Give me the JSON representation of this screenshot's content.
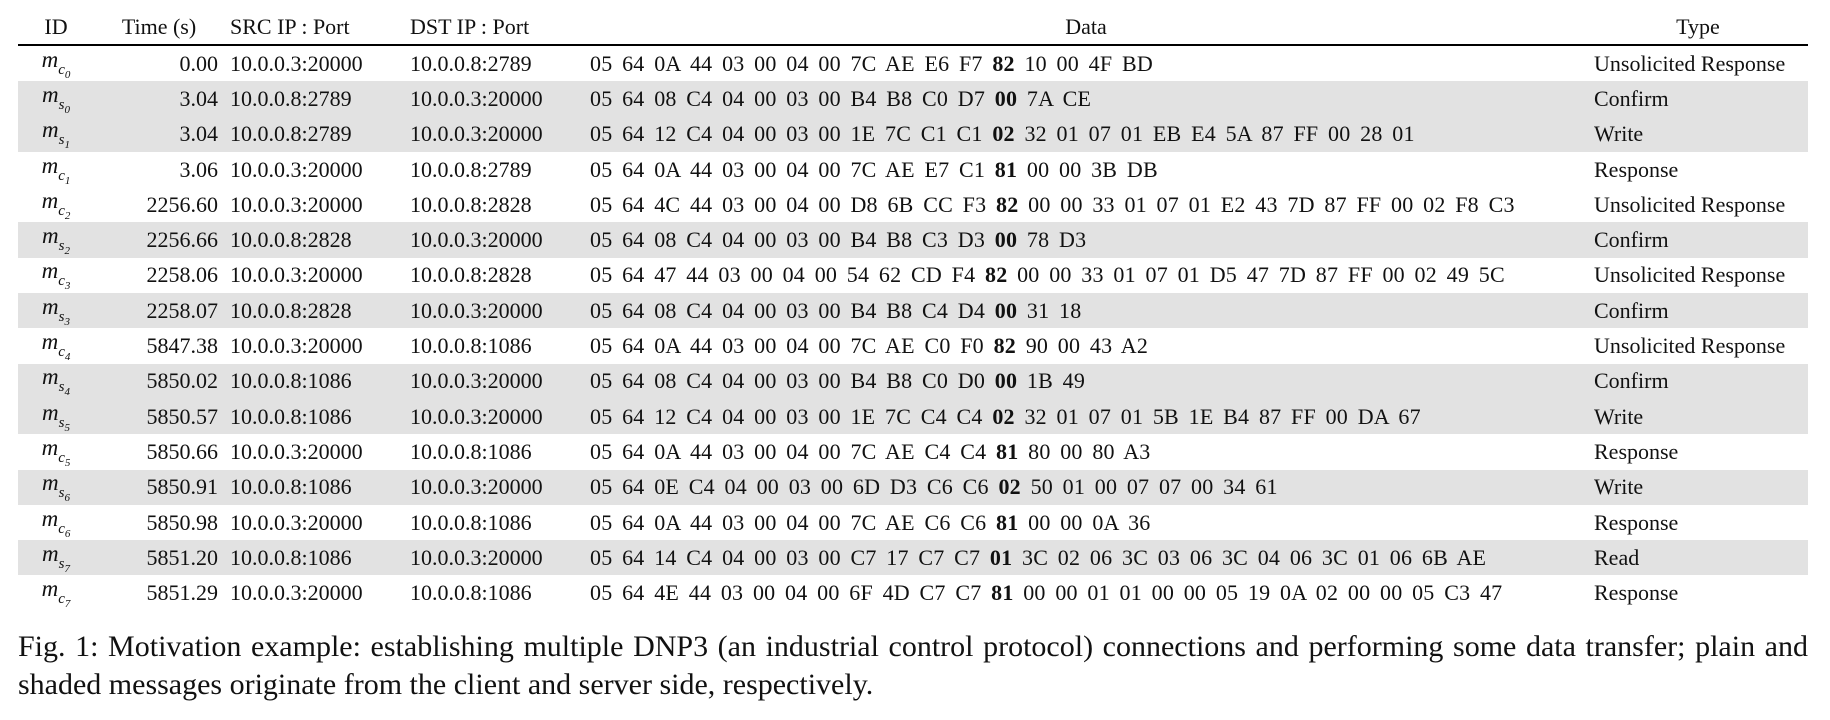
{
  "table": {
    "headers": {
      "id": "ID",
      "time": "Time (s)",
      "src": "SRC IP : Port",
      "dst": "DST IP : Port",
      "data": "Data",
      "type": "Type"
    },
    "rows": [
      {
        "side": "c",
        "idx": "0",
        "time": "0.00",
        "src": "10.0.0.3:20000",
        "dst": "10.0.0.8:2789",
        "pre": "05 64 0A 44 03 00 04 00 7C AE E6 F7",
        "key": "82",
        "post": "10 00 4F BD",
        "type": "Unsolicited Response",
        "shaded": false
      },
      {
        "side": "s",
        "idx": "0",
        "time": "3.04",
        "src": "10.0.0.8:2789",
        "dst": "10.0.0.3:20000",
        "pre": "05 64 08 C4 04 00 03 00 B4 B8 C0 D7",
        "key": "00",
        "post": "7A CE",
        "type": "Confirm",
        "shaded": true
      },
      {
        "side": "s",
        "idx": "1",
        "time": "3.04",
        "src": "10.0.0.8:2789",
        "dst": "10.0.0.3:20000",
        "pre": "05 64 12 C4 04 00 03 00 1E 7C C1 C1",
        "key": "02",
        "post": "32 01 07 01 EB E4 5A 87 FF 00 28 01",
        "type": "Write",
        "shaded": true
      },
      {
        "side": "c",
        "idx": "1",
        "time": "3.06",
        "src": "10.0.0.3:20000",
        "dst": "10.0.0.8:2789",
        "pre": "05 64 0A 44 03 00 04 00 7C AE E7 C1",
        "key": "81",
        "post": "00 00 3B DB",
        "type": "Response",
        "shaded": false
      },
      {
        "side": "c",
        "idx": "2",
        "time": "2256.60",
        "src": "10.0.0.3:20000",
        "dst": "10.0.0.8:2828",
        "pre": "05 64 4C 44 03 00 04 00 D8 6B CC F3",
        "key": "82",
        "post": "00 00 33 01 07 01 E2 43 7D 87 FF 00 02 F8 C3",
        "type": "Unsolicited Response",
        "shaded": false
      },
      {
        "side": "s",
        "idx": "2",
        "time": "2256.66",
        "src": "10.0.0.8:2828",
        "dst": "10.0.0.3:20000",
        "pre": "05 64 08 C4 04 00 03 00 B4 B8 C3 D3",
        "key": "00",
        "post": "78 D3",
        "type": "Confirm",
        "shaded": true
      },
      {
        "side": "c",
        "idx": "3",
        "time": "2258.06",
        "src": "10.0.0.3:20000",
        "dst": "10.0.0.8:2828",
        "pre": "05 64 47 44 03 00 04 00 54 62 CD F4",
        "key": "82",
        "post": "00 00 33 01 07 01 D5 47 7D 87 FF 00 02 49 5C",
        "type": "Unsolicited Response",
        "shaded": false
      },
      {
        "side": "s",
        "idx": "3",
        "time": "2258.07",
        "src": "10.0.0.8:2828",
        "dst": "10.0.0.3:20000",
        "pre": "05 64 08 C4 04 00 03 00 B4 B8 C4 D4",
        "key": "00",
        "post": "31 18",
        "type": "Confirm",
        "shaded": true
      },
      {
        "side": "c",
        "idx": "4",
        "time": "5847.38",
        "src": "10.0.0.3:20000",
        "dst": "10.0.0.8:1086",
        "pre": "05 64 0A 44 03 00 04 00 7C AE C0 F0",
        "key": "82",
        "post": "90 00 43 A2",
        "type": "Unsolicited Response",
        "shaded": false
      },
      {
        "side": "s",
        "idx": "4",
        "time": "5850.02",
        "src": "10.0.0.8:1086",
        "dst": "10.0.0.3:20000",
        "pre": "05 64 08 C4 04 00 03 00 B4 B8 C0 D0",
        "key": "00",
        "post": "1B 49",
        "type": "Confirm",
        "shaded": true
      },
      {
        "side": "s",
        "idx": "5",
        "time": "5850.57",
        "src": "10.0.0.8:1086",
        "dst": "10.0.0.3:20000",
        "pre": "05 64 12 C4 04 00 03 00 1E 7C C4 C4",
        "key": "02",
        "post": "32 01 07 01 5B 1E B4 87 FF 00 DA 67",
        "type": "Write",
        "shaded": true
      },
      {
        "side": "c",
        "idx": "5",
        "time": "5850.66",
        "src": "10.0.0.3:20000",
        "dst": "10.0.0.8:1086",
        "pre": "05 64 0A 44 03 00 04 00 7C AE C4 C4",
        "key": "81",
        "post": "80 00 80 A3",
        "type": "Response",
        "shaded": false
      },
      {
        "side": "s",
        "idx": "6",
        "time": "5850.91",
        "src": "10.0.0.8:1086",
        "dst": "10.0.0.3:20000",
        "pre": "05 64 0E C4 04 00 03 00 6D D3 C6 C6",
        "key": "02",
        "post": "50 01 00 07 07 00 34 61",
        "type": "Write",
        "shaded": true
      },
      {
        "side": "c",
        "idx": "6",
        "time": "5850.98",
        "src": "10.0.0.3:20000",
        "dst": "10.0.0.8:1086",
        "pre": "05 64 0A 44 03 00 04 00 7C AE C6 C6",
        "key": "81",
        "post": "00 00 0A 36",
        "type": "Response",
        "shaded": false
      },
      {
        "side": "s",
        "idx": "7",
        "time": "5851.20",
        "src": "10.0.0.8:1086",
        "dst": "10.0.0.3:20000",
        "pre": "05 64 14 C4 04 00 03 00 C7 17 C7 C7",
        "key": "01",
        "post": "3C 02 06 3C 03 06 3C 04 06 3C 01 06 6B AE",
        "type": "Read",
        "shaded": true
      },
      {
        "side": "c",
        "idx": "7",
        "time": "5851.29",
        "src": "10.0.0.3:20000",
        "dst": "10.0.0.8:1086",
        "pre": "05 64 4E 44 03 00 04 00 6F 4D C7 C7",
        "key": "81",
        "post": "00 00 01 01 00 00 05 19 0A 02 00 00 05 C3 47",
        "type": "Response",
        "shaded": false
      }
    ]
  },
  "caption": "Fig. 1: Motivation example: establishing multiple DNP3 (an industrial control protocol) connections and performing some data transfer; plain and shaded messages originate from the client and server side, respectively.",
  "colors": {
    "shade": "#e2e2e2",
    "rule": "#000000"
  }
}
